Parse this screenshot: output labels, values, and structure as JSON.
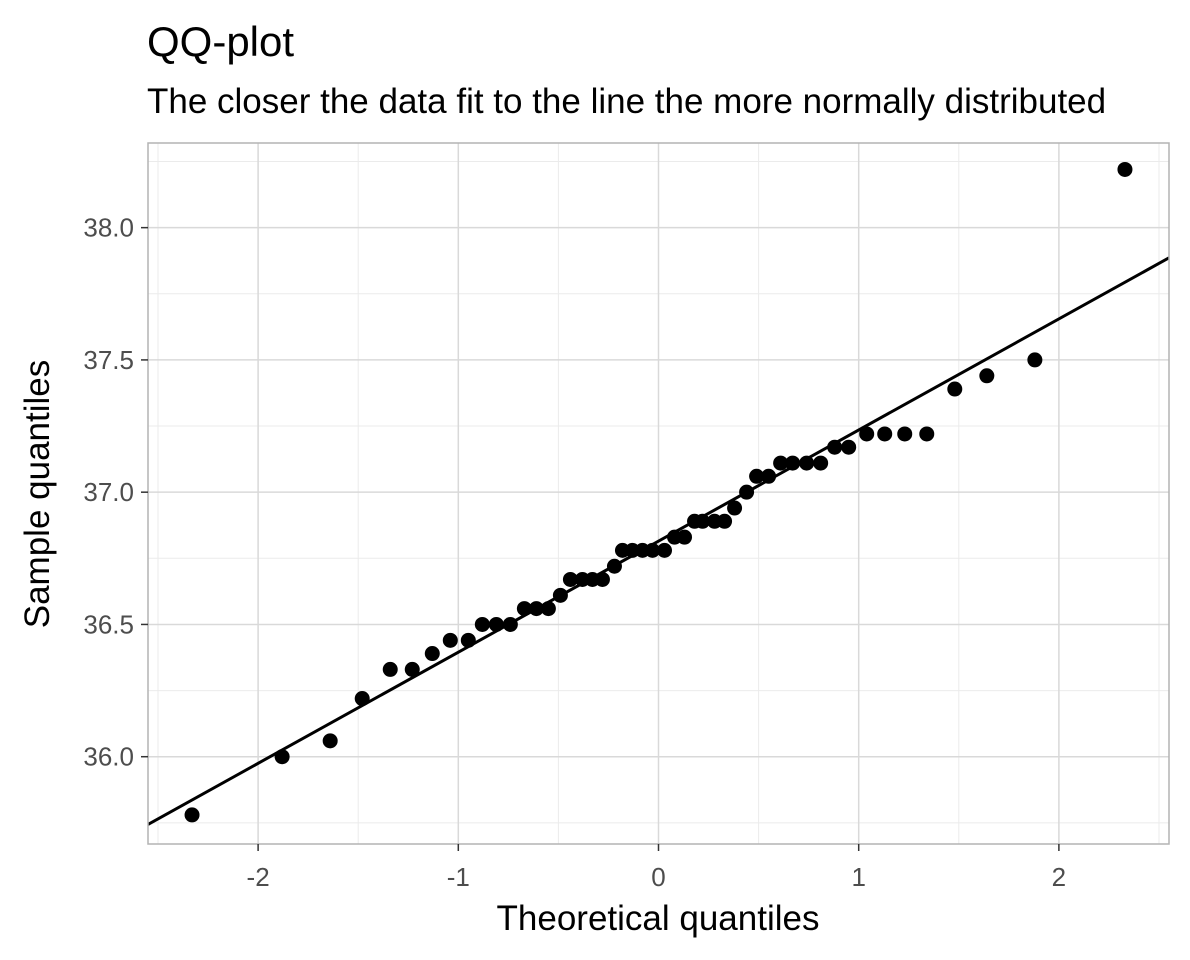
{
  "chart_data": {
    "type": "scatter",
    "title": "QQ-plot",
    "subtitle": "The closer the data fit to the line the more normally distributed",
    "xlabel": "Theoretical quantiles",
    "ylabel": "Sample quantiles",
    "xlim": [
      -2.55,
      2.55
    ],
    "ylim": [
      35.67,
      38.32
    ],
    "x_ticks": [
      -2,
      -1,
      0,
      1,
      2
    ],
    "x_tick_labels": [
      "-2",
      "-1",
      "0",
      "1",
      "2"
    ],
    "y_ticks": [
      36.0,
      36.5,
      37.0,
      37.5,
      38.0
    ],
    "y_tick_labels": [
      "36.0",
      "36.5",
      "37.0",
      "37.5",
      "38.0"
    ],
    "grid": true,
    "reference_line": {
      "intercept": 36.815,
      "slope": 0.42
    },
    "points": [
      {
        "x": -2.33,
        "y": 35.78
      },
      {
        "x": -1.88,
        "y": 36.0
      },
      {
        "x": -1.64,
        "y": 36.06
      },
      {
        "x": -1.48,
        "y": 36.22
      },
      {
        "x": -1.34,
        "y": 36.33
      },
      {
        "x": -1.23,
        "y": 36.33
      },
      {
        "x": -1.13,
        "y": 36.39
      },
      {
        "x": -1.04,
        "y": 36.44
      },
      {
        "x": -0.95,
        "y": 36.44
      },
      {
        "x": -0.88,
        "y": 36.5
      },
      {
        "x": -0.81,
        "y": 36.5
      },
      {
        "x": -0.74,
        "y": 36.5
      },
      {
        "x": -0.67,
        "y": 36.56
      },
      {
        "x": -0.61,
        "y": 36.56
      },
      {
        "x": -0.55,
        "y": 36.56
      },
      {
        "x": -0.49,
        "y": 36.61
      },
      {
        "x": -0.44,
        "y": 36.67
      },
      {
        "x": -0.38,
        "y": 36.67
      },
      {
        "x": -0.33,
        "y": 36.67
      },
      {
        "x": -0.28,
        "y": 36.67
      },
      {
        "x": -0.22,
        "y": 36.72
      },
      {
        "x": -0.18,
        "y": 36.78
      },
      {
        "x": -0.13,
        "y": 36.78
      },
      {
        "x": -0.08,
        "y": 36.78
      },
      {
        "x": -0.03,
        "y": 36.78
      },
      {
        "x": 0.03,
        "y": 36.78
      },
      {
        "x": 0.08,
        "y": 36.83
      },
      {
        "x": 0.13,
        "y": 36.83
      },
      {
        "x": 0.18,
        "y": 36.89
      },
      {
        "x": 0.22,
        "y": 36.89
      },
      {
        "x": 0.28,
        "y": 36.89
      },
      {
        "x": 0.33,
        "y": 36.89
      },
      {
        "x": 0.38,
        "y": 36.94
      },
      {
        "x": 0.44,
        "y": 37.0
      },
      {
        "x": 0.49,
        "y": 37.06
      },
      {
        "x": 0.55,
        "y": 37.06
      },
      {
        "x": 0.61,
        "y": 37.11
      },
      {
        "x": 0.67,
        "y": 37.11
      },
      {
        "x": 0.74,
        "y": 37.11
      },
      {
        "x": 0.81,
        "y": 37.11
      },
      {
        "x": 0.88,
        "y": 37.17
      },
      {
        "x": 0.95,
        "y": 37.17
      },
      {
        "x": 1.04,
        "y": 37.22
      },
      {
        "x": 1.13,
        "y": 37.22
      },
      {
        "x": 1.23,
        "y": 37.22
      },
      {
        "x": 1.34,
        "y": 37.22
      },
      {
        "x": 1.48,
        "y": 37.39
      },
      {
        "x": 1.64,
        "y": 37.44
      },
      {
        "x": 1.88,
        "y": 37.5
      },
      {
        "x": 2.33,
        "y": 38.22
      }
    ],
    "colors": {
      "point": "#000000",
      "line": "#000000",
      "grid_major": "#d9d9d9",
      "grid_minor": "#ebebeb",
      "panel_border": "#b3b3b3"
    }
  }
}
